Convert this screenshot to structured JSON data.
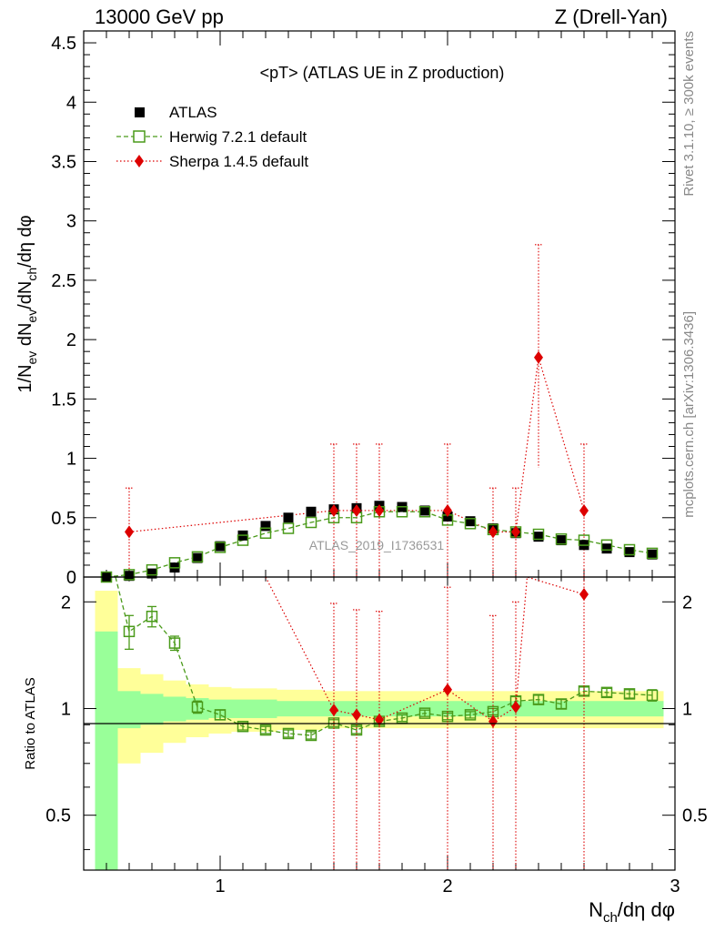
{
  "header": {
    "left": "13000 GeV pp",
    "right": "Z (Drell-Yan)"
  },
  "side_text": {
    "rivet": "Rivet 3.1.10, ≥ 300k events",
    "mcplots": "mcplots.cern.ch [arXiv:1306.3436]"
  },
  "watermark": "ATLAS_2019_I1736531",
  "chart_data": [
    {
      "panel": "main",
      "type": "scatter",
      "title": "<pT> (ATLAS UE in Z production)",
      "ylabel": "1/N_ev dN_ev/dN_ch/dη dφ",
      "ylim": [
        0,
        4.6
      ],
      "xlim": [
        0.4,
        3.0
      ],
      "yticks": [
        "0",
        "0.5",
        "1",
        "1.5",
        "2",
        "2.5",
        "3",
        "3.5",
        "4",
        "4.5"
      ],
      "legend": {
        "position": "top-left",
        "entries": [
          "ATLAS",
          "Herwig 7.2.1 default",
          "Sherpa 1.4.5 default"
        ]
      },
      "series": [
        {
          "name": "ATLAS",
          "marker": "filled-square",
          "color": "#000000",
          "x": [
            0.5,
            0.6,
            0.7,
            0.8,
            0.9,
            1.0,
            1.1,
            1.2,
            1.3,
            1.4,
            1.5,
            1.6,
            1.7,
            1.8,
            1.9,
            2.0,
            2.1,
            2.2,
            2.3,
            2.4,
            2.5,
            2.6,
            2.7,
            2.8,
            2.9
          ],
          "y": [
            0.0,
            0.01,
            0.03,
            0.08,
            0.16,
            0.26,
            0.35,
            0.43,
            0.5,
            0.55,
            0.57,
            0.58,
            0.6,
            0.59,
            0.56,
            0.51,
            0.47,
            0.41,
            0.37,
            0.34,
            0.31,
            0.27,
            0.24,
            0.21,
            0.19
          ],
          "yerr": [
            0.01,
            0.01,
            0.01,
            0.01,
            0.01,
            0.01,
            0.01,
            0.01,
            0.01,
            0.01,
            0.01,
            0.01,
            0.01,
            0.01,
            0.01,
            0.01,
            0.01,
            0.01,
            0.01,
            0.01,
            0.01,
            0.01,
            0.01,
            0.01,
            0.01
          ]
        },
        {
          "name": "Herwig 7.2.1 default",
          "marker": "open-square",
          "line": "dashed",
          "color": "#4a9a1a",
          "x": [
            0.5,
            0.6,
            0.7,
            0.8,
            0.9,
            1.0,
            1.1,
            1.2,
            1.3,
            1.4,
            1.5,
            1.6,
            1.7,
            1.8,
            1.9,
            2.0,
            2.1,
            2.2,
            2.3,
            2.4,
            2.5,
            2.6,
            2.7,
            2.8,
            2.9
          ],
          "y": [
            0.0,
            0.02,
            0.06,
            0.12,
            0.17,
            0.25,
            0.31,
            0.37,
            0.41,
            0.46,
            0.5,
            0.5,
            0.55,
            0.55,
            0.55,
            0.48,
            0.45,
            0.4,
            0.38,
            0.36,
            0.32,
            0.31,
            0.27,
            0.23,
            0.2
          ],
          "yerr": [
            0.01,
            0.02,
            0.01,
            0.01,
            0.01,
            0.01,
            0.01,
            0.01,
            0.01,
            0.01,
            0.01,
            0.01,
            0.01,
            0.01,
            0.01,
            0.01,
            0.01,
            0.01,
            0.01,
            0.01,
            0.01,
            0.01,
            0.01,
            0.01,
            0.01
          ]
        },
        {
          "name": "Sherpa 1.4.5 default",
          "marker": "diamond",
          "line": "dotted",
          "color": "#dd0000",
          "x": [
            0.6,
            1.5,
            1.6,
            1.7,
            2.0,
            2.2,
            2.3,
            2.4,
            2.6
          ],
          "y": [
            0.38,
            0.56,
            0.56,
            0.56,
            0.56,
            0.38,
            0.38,
            1.85,
            0.56
          ],
          "ylo": [
            0.0,
            0.0,
            0.0,
            0.0,
            0.0,
            0.0,
            0.0,
            0.92,
            0.0
          ],
          "yhi": [
            0.75,
            1.12,
            1.12,
            1.12,
            1.12,
            0.75,
            0.75,
            2.8,
            1.12
          ]
        }
      ]
    },
    {
      "panel": "ratio",
      "type": "scatter",
      "ylabel": "Ratio to ATLAS",
      "xlabel": "N_ch/dη dφ",
      "ylim": [
        0.35,
        2.35
      ],
      "xlim": [
        0.4,
        3.0
      ],
      "yscale": "log",
      "yticks": [
        "0.5",
        "1",
        "2"
      ],
      "xticks": [
        "1",
        "2",
        "3"
      ],
      "bands": {
        "edges": [
          0.45,
          0.55,
          0.65,
          0.75,
          0.85,
          0.95,
          1.05,
          1.15,
          1.25,
          1.35,
          1.45,
          1.55,
          1.65,
          1.75,
          1.85,
          1.95,
          2.05,
          2.15,
          2.25,
          2.35,
          2.45,
          2.55,
          2.65,
          2.75,
          2.85,
          2.95
        ],
        "stat": [
          0.65,
          0.12,
          0.1,
          0.08,
          0.07,
          0.06,
          0.06,
          0.06,
          0.05,
          0.05,
          0.05,
          0.05,
          0.05,
          0.05,
          0.05,
          0.05,
          0.05,
          0.05,
          0.05,
          0.05,
          0.05,
          0.05,
          0.05,
          0.05,
          0.05
        ],
        "total": [
          1.15,
          0.3,
          0.25,
          0.2,
          0.17,
          0.15,
          0.14,
          0.14,
          0.13,
          0.13,
          0.12,
          0.12,
          0.12,
          0.12,
          0.12,
          0.12,
          0.12,
          0.12,
          0.12,
          0.12,
          0.12,
          0.12,
          0.12,
          0.12,
          0.12
        ],
        "stat_color": "#99ff99",
        "total_color": "#ffff99"
      },
      "series": [
        {
          "name": "Herwig 7.2.1 default",
          "marker": "open-square",
          "line": "dashed",
          "color": "#4a9a1a",
          "x": [
            0.6,
            0.7,
            0.8,
            0.9,
            1.0,
            1.1,
            1.2,
            1.3,
            1.4,
            1.5,
            1.6,
            1.7,
            1.8,
            1.9,
            2.0,
            2.1,
            2.2,
            2.3,
            2.4,
            2.5,
            2.6,
            2.7,
            2.8,
            2.9
          ],
          "y": [
            1.65,
            1.82,
            1.53,
            1.01,
            0.96,
            0.89,
            0.87,
            0.85,
            0.84,
            0.91,
            0.87,
            0.92,
            0.94,
            0.97,
            0.95,
            0.96,
            0.98,
            1.05,
            1.06,
            1.03,
            1.12,
            1.11,
            1.1,
            1.09
          ],
          "yerr": [
            0.18,
            0.12,
            0.07,
            0.04,
            0.03,
            0.02,
            0.02,
            0.02,
            0.02,
            0.02,
            0.02,
            0.02,
            0.02,
            0.02,
            0.02,
            0.02,
            0.02,
            0.03,
            0.03,
            0.03,
            0.03,
            0.03,
            0.03,
            0.04
          ],
          "lead_in": {
            "x": 0.5,
            "y": 3.0
          }
        },
        {
          "name": "Sherpa 1.4.5 default",
          "marker": "diamond",
          "line": "dotted",
          "color": "#dd0000",
          "x": [
            1.5,
            1.6,
            1.7,
            2.0,
            2.2,
            2.3,
            2.6
          ],
          "y": [
            0.99,
            0.96,
            0.93,
            1.13,
            0.92,
            1.01,
            2.1
          ],
          "ylo": [
            0.0,
            0.0,
            0.0,
            0.0,
            0.0,
            0.0,
            0.0
          ],
          "yhi": [
            1.98,
            1.9,
            1.88,
            2.2,
            1.83,
            2.0,
            2.35
          ],
          "lead_in": {
            "x": 1.2,
            "y": 3.0
          },
          "lead_out": {
            "x": 2.35,
            "y": 3.0
          }
        }
      ]
    }
  ]
}
